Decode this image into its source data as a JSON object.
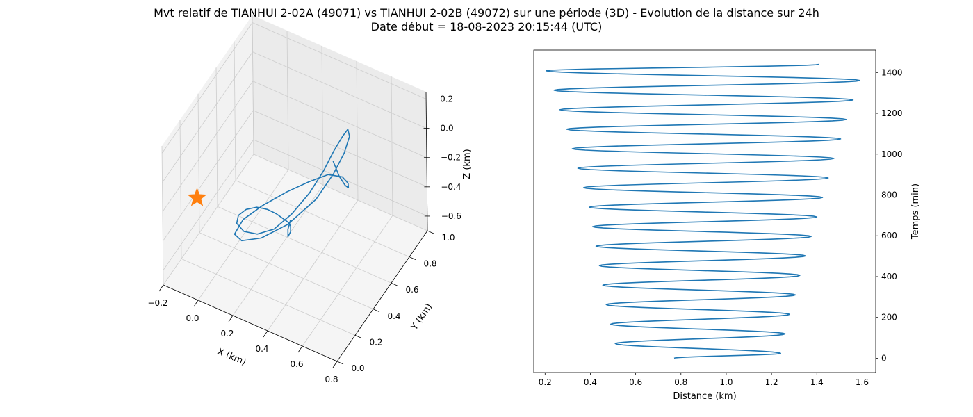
{
  "title_line1": "Mvt relatif de TIANHUI 2-02A (49071) vs TIANHUI 2-02B (49072) sur une période (3D) - Evolution de la distance sur 24h",
  "title_line2": "Date début = 18-08-2023 20:15:44 (UTC)",
  "colors": {
    "line": "#1f77b4",
    "marker": "#ff7f0e",
    "pane": "#f2f2f2",
    "grid": "#cccccc"
  },
  "chart_data": [
    {
      "type": "line3d",
      "xlabel": "X (km)",
      "ylabel": "Y (km)",
      "zlabel": "Z (km)",
      "xlim": [
        -0.2,
        0.8
      ],
      "ylim": [
        0.0,
        1.0
      ],
      "zlim": [
        -0.7,
        0.25
      ],
      "x_ticks": [
        "−0.2",
        "0.0",
        "0.2",
        "0.4",
        "0.6",
        "0.8"
      ],
      "y_ticks": [
        "0.0",
        "0.2",
        "0.4",
        "0.6",
        "0.8",
        "1.0"
      ],
      "z_ticks": [
        "0.2",
        "0.0",
        "−0.2",
        "−0.4",
        "−0.6"
      ],
      "grid": true,
      "marker": {
        "shape": "star",
        "x": 0.0,
        "y": 0.0,
        "z": 0.0
      },
      "trajectory_xyz": [
        [
          0.28,
          0.96,
          -0.46
        ],
        [
          0.33,
          0.93,
          -0.51
        ],
        [
          0.38,
          0.9,
          -0.52
        ],
        [
          0.42,
          0.86,
          -0.48
        ],
        [
          0.45,
          0.8,
          -0.38
        ],
        [
          0.46,
          0.72,
          -0.26
        ],
        [
          0.43,
          0.62,
          -0.17
        ],
        [
          0.38,
          0.5,
          -0.14
        ],
        [
          0.32,
          0.38,
          -0.13
        ],
        [
          0.24,
          0.26,
          -0.16
        ],
        [
          0.17,
          0.18,
          -0.22
        ],
        [
          0.14,
          0.14,
          -0.3
        ],
        [
          0.16,
          0.18,
          -0.37
        ],
        [
          0.22,
          0.28,
          -0.41
        ],
        [
          0.3,
          0.42,
          -0.4
        ],
        [
          0.38,
          0.58,
          -0.33
        ],
        [
          0.42,
          0.7,
          -0.24
        ],
        [
          0.44,
          0.78,
          -0.16
        ],
        [
          0.44,
          0.84,
          -0.1
        ],
        [
          0.42,
          0.86,
          -0.08
        ],
        [
          0.4,
          0.84,
          -0.12
        ],
        [
          0.37,
          0.8,
          -0.2
        ],
        [
          0.34,
          0.74,
          -0.3
        ],
        [
          0.3,
          0.66,
          -0.4
        ],
        [
          0.25,
          0.56,
          -0.48
        ],
        [
          0.2,
          0.46,
          -0.52
        ],
        [
          0.15,
          0.37,
          -0.5
        ],
        [
          0.11,
          0.3,
          -0.44
        ],
        [
          0.09,
          0.26,
          -0.36
        ],
        [
          0.1,
          0.26,
          -0.3
        ],
        [
          0.13,
          0.29,
          -0.27
        ],
        [
          0.17,
          0.33,
          -0.27
        ],
        [
          0.21,
          0.37,
          -0.3
        ],
        [
          0.24,
          0.41,
          -0.35
        ],
        [
          0.27,
          0.44,
          -0.4
        ],
        [
          0.28,
          0.46,
          -0.43
        ],
        [
          0.29,
          0.47,
          -0.46
        ],
        [
          0.29,
          0.47,
          -0.5
        ],
        [
          0.28,
          0.46,
          -0.53
        ],
        [
          0.28,
          0.46,
          -0.48
        ],
        [
          0.29,
          0.47,
          -0.42
        ]
      ]
    },
    {
      "type": "line",
      "xlabel": "Distance (km)",
      "ylabel": "Temps (min)",
      "xlim": [
        0.15,
        1.66
      ],
      "ylim": [
        -70,
        1510
      ],
      "x_ticks": [
        0.2,
        0.4,
        0.6,
        0.8,
        1.0,
        1.2,
        1.4,
        1.6
      ],
      "y_ticks": [
        0,
        200,
        400,
        600,
        800,
        1000,
        1200,
        1400
      ],
      "y_axis_side": "right",
      "orbit_period_min": 95.5,
      "minima_km": [
        0.51,
        0.49,
        0.47,
        0.455,
        0.44,
        0.425,
        0.41,
        0.395,
        0.37,
        0.345,
        0.32,
        0.295,
        0.265,
        0.24,
        0.205
      ],
      "maxima_km": [
        1.24,
        1.26,
        1.28,
        1.305,
        1.325,
        1.35,
        1.375,
        1.4,
        1.425,
        1.45,
        1.475,
        1.505,
        1.53,
        1.56,
        1.59
      ],
      "start": {
        "time_min": 0,
        "distance_km": 0.77
      },
      "end": {
        "time_min": 1440,
        "distance_km": 1.41
      }
    }
  ]
}
